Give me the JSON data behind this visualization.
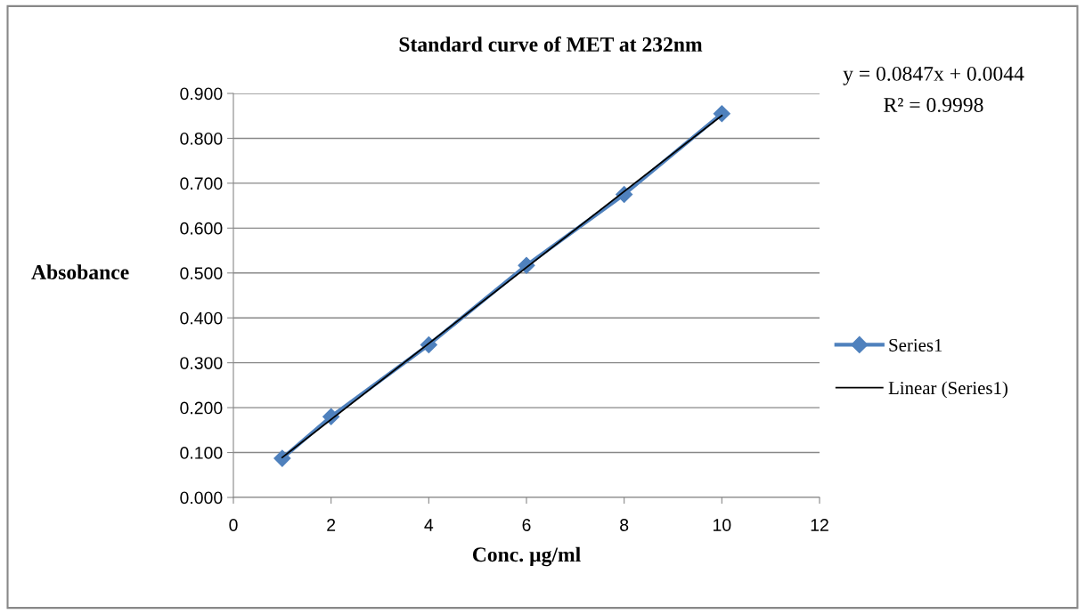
{
  "chart_data": {
    "type": "line",
    "title": "Standard curve of MET at 232nm",
    "xlabel": "Conc. µg/ml",
    "ylabel": "Absobance",
    "series": [
      {
        "name": "Series1",
        "color": "#4f81bd",
        "marker": "diamond",
        "line_style": "solid",
        "x": [
          1,
          2,
          4,
          6,
          8,
          10
        ],
        "values": [
          0.087,
          0.18,
          0.34,
          0.517,
          0.675,
          0.855
        ]
      },
      {
        "name": "Linear (Series1)",
        "color": "#000000",
        "marker": "none",
        "line_style": "solid",
        "x": [
          1,
          10
        ],
        "values": [
          0.089,
          0.851
        ]
      }
    ],
    "xlim": [
      0,
      12
    ],
    "xticks": [
      0,
      2,
      4,
      6,
      8,
      10,
      12
    ],
    "ylim": [
      0,
      0.9
    ],
    "yticks": [
      {
        "value": 0,
        "label": "0.000"
      },
      {
        "value": 0.1,
        "label": "0.100"
      },
      {
        "value": 0.2,
        "label": "0.200"
      },
      {
        "value": 0.3,
        "label": "0.300"
      },
      {
        "value": 0.4,
        "label": "0.400"
      },
      {
        "value": 0.5,
        "label": "0.500"
      },
      {
        "value": 0.6,
        "label": "0.600"
      },
      {
        "value": 0.7,
        "label": "0.700"
      },
      {
        "value": 0.8,
        "label": "0.800"
      },
      {
        "value": 0.9,
        "label": "0.900"
      }
    ],
    "grid": "y",
    "legend": "right",
    "annotations": [
      "y = 0.0847x + 0.0044",
      "R² = 0.9998"
    ]
  }
}
